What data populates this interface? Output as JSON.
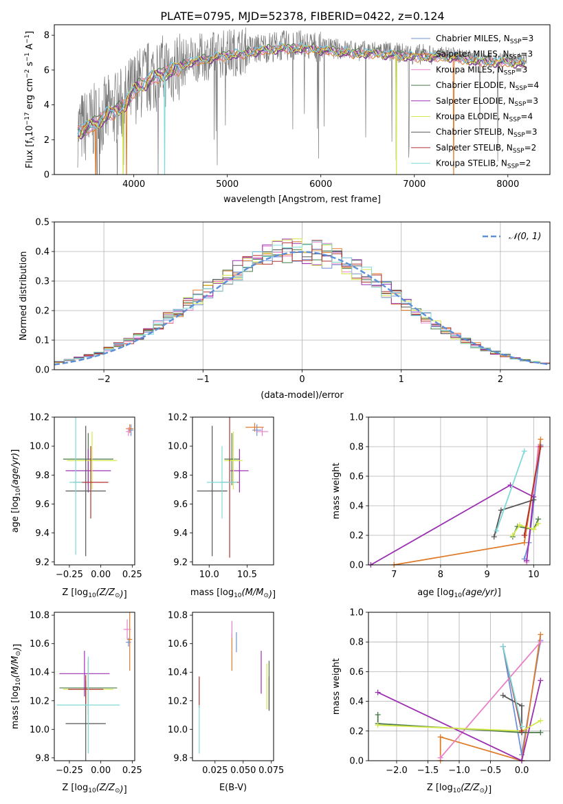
{
  "figure": {
    "title": "PLATE=0795, MJD=52378, FIBERID=0422, z=0.124"
  },
  "colors": {
    "Chabrier MILES": "#6f8fd8",
    "Salpeter MILES": "#e07b2a",
    "Kroupa MILES": "#e880c8",
    "Chabrier ELODIE": "#4a7a4a",
    "Salpeter ELODIE": "#9b30b0",
    "Kroupa ELODIE": "#d4e84a",
    "Chabrier STELIB": "#555555",
    "Salpeter STELIB": "#b03030",
    "Kroupa STELIB": "#7fd8d8",
    "normal_curve": "#5b8fd8"
  },
  "chart_data": [
    {
      "id": "spectrum",
      "type": "line",
      "title": "PLATE=0795, MJD=52378, FIBERID=0422, z=0.124",
      "xlabel": "wavelength [Angstrom, rest frame]",
      "ylabel": "Flux [f_λ 10^-17 erg cm^-2 s^-1 A^-1]",
      "xlim": [
        3150,
        8450
      ],
      "ylim": [
        0,
        8.6
      ],
      "xticks": [
        4000,
        5000,
        6000,
        7000,
        8000
      ],
      "yticks": [
        0,
        2,
        4,
        6,
        8
      ],
      "legend": "top-right",
      "data_envelope": {
        "x": [
          3400,
          3500,
          3700,
          3900,
          4000,
          4200,
          4400,
          4600,
          4800,
          5000,
          5200,
          5400,
          5600,
          5800,
          6000,
          6200,
          6400,
          6600,
          6800,
          7000,
          7200,
          7400,
          7600,
          7800,
          8000,
          8200
        ],
        "y": [
          2.6,
          2.8,
          3.5,
          4.1,
          5.0,
          5.7,
          6.1,
          6.6,
          6.8,
          7.0,
          7.1,
          7.3,
          7.4,
          7.4,
          7.3,
          7.2,
          7.1,
          7.1,
          7.0,
          6.9,
          6.9,
          6.9,
          6.7,
          6.6,
          6.6,
          6.5
        ]
      },
      "series": [
        {
          "name": "Chabrier MILES",
          "nssp": "3"
        },
        {
          "name": "Salpeter MILES",
          "nssp": "3"
        },
        {
          "name": "Kroupa MILES",
          "nssp": "3"
        },
        {
          "name": "Chabrier ELODIE",
          "nssp": "4"
        },
        {
          "name": "Salpeter ELODIE",
          "nssp": "3"
        },
        {
          "name": "Kroupa ELODIE",
          "nssp": "4"
        },
        {
          "name": "Chabrier STELIB",
          "nssp": "3"
        },
        {
          "name": "Salpeter STELIB",
          "nssp": "2"
        },
        {
          "name": "Kroupa STELIB",
          "nssp": "2"
        }
      ]
    },
    {
      "id": "residuals",
      "type": "line",
      "xlabel": "(data-model)/error",
      "ylabel": "Normed distribution",
      "xlim": [
        -2.5,
        2.5
      ],
      "ylim": [
        0,
        0.5
      ],
      "xticks": [
        -2,
        -1,
        0,
        1,
        2
      ],
      "yticks": [
        0.0,
        0.1,
        0.2,
        0.3,
        0.4,
        0.5
      ],
      "grid": true,
      "legend": "top-right",
      "gaussian_label": "𝒩(0, 1)",
      "bin_width": 0.1
    },
    {
      "id": "age_vs_Z",
      "type": "scatter",
      "xlabel": "Z [log10(Z/Z⊙)]",
      "ylabel": "age  [log10(age/yr)]",
      "xlim": [
        -0.37,
        0.27
      ],
      "ylim": [
        9.18,
        10.2
      ],
      "xticks": [
        -0.25,
        0.0,
        0.25
      ],
      "xticklabels": [
        "−0.25",
        "0.00",
        "0.25"
      ],
      "yticks": [
        9.2,
        9.4,
        9.6,
        9.8,
        10.0,
        10.2
      ],
      "points": [
        {
          "model": "Chabrier MILES",
          "x": 0.24,
          "y": 10.11,
          "xerr": 0.02,
          "yerr": 0.04
        },
        {
          "model": "Salpeter MILES",
          "x": 0.23,
          "y": 10.12,
          "xerr": 0.03,
          "yerr": 0.03
        },
        {
          "model": "Kroupa MILES",
          "x": 0.22,
          "y": 10.1,
          "xerr": 0.02,
          "yerr": 0.03
        },
        {
          "model": "Chabrier ELODIE",
          "x": -0.1,
          "y": 9.91,
          "xerr": 0.2,
          "yerr": 0.18
        },
        {
          "model": "Salpeter ELODIE",
          "x": -0.1,
          "y": 9.83,
          "xerr": 0.18,
          "yerr": 0.15
        },
        {
          "model": "Kroupa ELODIE",
          "x": -0.07,
          "y": 9.9,
          "xerr": 0.2,
          "yerr": 0.2
        },
        {
          "model": "Chabrier STELIB",
          "x": -0.12,
          "y": 9.69,
          "xerr": 0.16,
          "yerr": 0.45
        },
        {
          "model": "Salpeter STELIB",
          "x": -0.08,
          "y": 9.75,
          "xerr": 0.14,
          "yerr": 0.25
        },
        {
          "model": "Kroupa STELIB",
          "x": -0.2,
          "y": 9.75,
          "xerr": 0.05,
          "yerr": 0.5
        }
      ]
    },
    {
      "id": "age_vs_mass",
      "type": "scatter",
      "xlabel": "mass [log10(M/M⊙)]",
      "xlim": [
        9.78,
        10.85
      ],
      "ylim": [
        9.18,
        10.2
      ],
      "xticks": [
        10.0,
        10.5
      ],
      "yticks": [
        9.2,
        9.4,
        9.6,
        9.8,
        10.0,
        10.2
      ],
      "points": [
        {
          "model": "Chabrier MILES",
          "x": 10.63,
          "y": 10.11,
          "xerr": 0.06,
          "yerr": 0.04
        },
        {
          "model": "Salpeter MILES",
          "x": 10.6,
          "y": 10.13,
          "xerr": 0.12,
          "yerr": 0.03
        },
        {
          "model": "Kroupa MILES",
          "x": 10.7,
          "y": 10.1,
          "xerr": 0.08,
          "yerr": 0.03
        },
        {
          "model": "Chabrier ELODIE",
          "x": 10.3,
          "y": 9.91,
          "xerr": 0.1,
          "yerr": 0.18
        },
        {
          "model": "Salpeter ELODIE",
          "x": 10.4,
          "y": 9.83,
          "xerr": 0.12,
          "yerr": 0.15
        },
        {
          "model": "Kroupa ELODIE",
          "x": 10.32,
          "y": 9.9,
          "xerr": 0.12,
          "yerr": 0.2
        },
        {
          "model": "Chabrier STELIB",
          "x": 10.04,
          "y": 9.69,
          "xerr": 0.2,
          "yerr": 0.45
        },
        {
          "model": "Salpeter STELIB",
          "x": 10.27,
          "y": 9.75,
          "xerr": 0.12,
          "yerr": 0.52
        },
        {
          "model": "Kroupa STELIB",
          "x": 10.17,
          "y": 9.75,
          "xerr": 0.2,
          "yerr": 0.25
        }
      ]
    },
    {
      "id": "weight_vs_age",
      "type": "line",
      "xlabel": "age  [log10(age/yr)]",
      "ylabel": "mass weight",
      "xlim": [
        6.45,
        10.35
      ],
      "ylim": [
        0,
        1
      ],
      "xticks": [
        7,
        8,
        9,
        10
      ],
      "yticks": [
        0.0,
        0.2,
        0.4,
        0.6,
        0.8,
        1.0
      ],
      "grid": true,
      "series": [
        {
          "name": "Chabrier MILES",
          "x": [
            9.8,
            9.9,
            10.15
          ],
          "y": [
            0.04,
            0.15,
            0.81
          ]
        },
        {
          "name": "Salpeter MILES",
          "x": [
            7.0,
            9.8,
            10.15
          ],
          "y": [
            0.0,
            0.15,
            0.85
          ]
        },
        {
          "name": "Kroupa MILES",
          "x": [
            9.85,
            10.1
          ],
          "y": [
            0.02,
            0.8
          ]
        },
        {
          "name": "Chabrier ELODIE",
          "x": [
            9.55,
            9.65,
            10.0,
            10.1
          ],
          "y": [
            0.19,
            0.26,
            0.24,
            0.31
          ]
        },
        {
          "name": "Salpeter ELODIE",
          "x": [
            6.5,
            9.5,
            10.0,
            9.85
          ],
          "y": [
            0.0,
            0.54,
            0.46,
            0.03
          ]
        },
        {
          "name": "Kroupa ELODIE",
          "x": [
            9.55,
            9.7,
            10.0,
            10.1
          ],
          "y": [
            0.2,
            0.27,
            0.24,
            0.28
          ]
        },
        {
          "name": "Chabrier STELIB",
          "x": [
            9.15,
            9.3,
            10.0
          ],
          "y": [
            0.19,
            0.37,
            0.44
          ]
        },
        {
          "name": "Salpeter STELIB",
          "x": [
            9.8,
            10.15
          ],
          "y": [
            0.2,
            0.8
          ]
        },
        {
          "name": "Kroupa STELIB",
          "x": [
            9.2,
            9.8
          ],
          "y": [
            0.23,
            0.77
          ]
        }
      ]
    },
    {
      "id": "mass_vs_Z",
      "type": "scatter",
      "xlabel": "Z [log10(Z/Z⊙)]",
      "ylabel": "mass [log10(M/M⊙)]",
      "xlim": [
        -0.37,
        0.27
      ],
      "ylim": [
        9.78,
        10.82
      ],
      "xticks": [
        -0.25,
        0.0,
        0.25
      ],
      "xticklabels": [
        "−0.25",
        "0.00",
        "0.25"
      ],
      "yticks": [
        9.8,
        10.0,
        10.2,
        10.4,
        10.6,
        10.8
      ],
      "points": [
        {
          "model": "Chabrier MILES",
          "x": 0.22,
          "y": 10.61,
          "xerr": 0.02,
          "yerr": 0.03
        },
        {
          "model": "Salpeter MILES",
          "x": 0.23,
          "y": 10.63,
          "xerr": 0.02,
          "yerr": 0.22
        },
        {
          "model": "Kroupa MILES",
          "x": 0.21,
          "y": 10.7,
          "xerr": 0.03,
          "yerr": 0.07
        },
        {
          "model": "Chabrier ELODIE",
          "x": -0.1,
          "y": 10.29,
          "xerr": 0.23,
          "yerr": 0.19
        },
        {
          "model": "Salpeter ELODIE",
          "x": -0.13,
          "y": 10.39,
          "xerr": 0.2,
          "yerr": 0.16
        },
        {
          "model": "Kroupa ELODIE",
          "x": -0.1,
          "y": 10.28,
          "xerr": 0.2,
          "yerr": 0.18
        },
        {
          "model": "Chabrier STELIB",
          "x": -0.12,
          "y": 10.04,
          "xerr": 0.16,
          "yerr": 0.3
        },
        {
          "model": "Salpeter STELIB",
          "x": -0.12,
          "y": 10.28,
          "xerr": 0.14,
          "yerr": 0.1
        },
        {
          "model": "Kroupa STELIB",
          "x": -0.1,
          "y": 10.17,
          "xerr": 0.25,
          "yerr": 0.34
        }
      ]
    },
    {
      "id": "mass_vs_ebv",
      "type": "scatter",
      "xlabel": "E(B-V)",
      "xlim": [
        0.005,
        0.077
      ],
      "ylim": [
        9.78,
        10.82
      ],
      "xticks": [
        0.025,
        0.05,
        0.075
      ],
      "xticklabels": [
        "0.025",
        "0.050",
        "0.075"
      ],
      "yticks": [
        9.8,
        10.0,
        10.2,
        10.4,
        10.6,
        10.8
      ],
      "points": [
        {
          "model": "Chabrier MILES",
          "x": 0.044,
          "y": 10.61,
          "yerr": 0.07
        },
        {
          "model": "Salpeter MILES",
          "x": 0.04,
          "y": 10.54,
          "yerr": 0.13
        },
        {
          "model": "Kroupa MILES",
          "x": 0.04,
          "y": 10.7,
          "yerr": 0.06
        },
        {
          "model": "Chabrier ELODIE",
          "x": 0.073,
          "y": 10.31,
          "yerr": 0.17
        },
        {
          "model": "Salpeter ELODIE",
          "x": 0.066,
          "y": 10.4,
          "yerr": 0.15
        },
        {
          "model": "Kroupa ELODIE",
          "x": 0.071,
          "y": 10.3,
          "yerr": 0.16
        },
        {
          "model": "Chabrier STELIB",
          "x": 0.073,
          "y": 10.25,
          "yerr": 0.12
        },
        {
          "model": "Salpeter STELIB",
          "x": 0.011,
          "y": 10.26,
          "yerr": 0.11
        },
        {
          "model": "Kroupa STELIB",
          "x": 0.011,
          "y": 10.0,
          "yerr": 0.17
        }
      ]
    },
    {
      "id": "weight_vs_Z",
      "type": "line",
      "xlabel": "Z [log10(Z/Z⊙)]",
      "ylabel": "mass weight",
      "xlim": [
        -2.45,
        0.45
      ],
      "ylim": [
        0,
        1
      ],
      "xticks": [
        -2.0,
        -1.5,
        -1.0,
        -0.5,
        0.0
      ],
      "xticklabels": [
        "−2.0",
        "−1.5",
        "−1.0",
        "−0.5",
        "0.0"
      ],
      "yticks": [
        0.0,
        0.2,
        0.4,
        0.6,
        0.8,
        1.0
      ],
      "grid": true,
      "series": [
        {
          "name": "Chabrier MILES",
          "x": [
            -0.3,
            0.0,
            0.3
          ],
          "y": [
            0.77,
            0.04,
            0.81
          ]
        },
        {
          "name": "Salpeter MILES",
          "x": [
            -1.3,
            -1.3,
            0.0,
            0.3
          ],
          "y": [
            0.0,
            0.16,
            0.0,
            0.85
          ]
        },
        {
          "name": "Kroupa MILES",
          "x": [
            -1.3,
            0.3
          ],
          "y": [
            0.02,
            0.8
          ]
        },
        {
          "name": "Chabrier ELODIE",
          "x": [
            -2.3,
            -2.3,
            0.0,
            0.3
          ],
          "y": [
            0.31,
            0.25,
            0.19,
            0.19
          ]
        },
        {
          "name": "Salpeter ELODIE",
          "x": [
            -2.3,
            0.0,
            0.3
          ],
          "y": [
            0.46,
            0.0,
            0.54
          ]
        },
        {
          "name": "Kroupa ELODIE",
          "x": [
            -2.3,
            0.0,
            0.3
          ],
          "y": [
            0.24,
            0.2,
            0.27
          ]
        },
        {
          "name": "Chabrier STELIB",
          "x": [
            -0.3,
            0.0,
            0.0
          ],
          "y": [
            0.44,
            0.37,
            0.19
          ]
        },
        {
          "name": "Salpeter STELIB",
          "x": [
            -0.3,
            0.0
          ],
          "y": [
            0.77,
            0.2
          ]
        },
        {
          "name": "Kroupa STELIB",
          "x": [
            -0.3,
            0.0
          ],
          "y": [
            0.77,
            0.23
          ]
        }
      ]
    }
  ]
}
